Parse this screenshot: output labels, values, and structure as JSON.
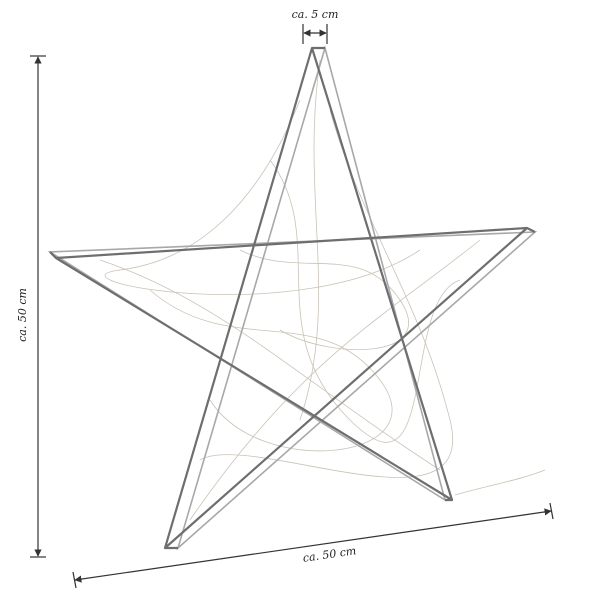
{
  "dimensions": {
    "depth": "ca. 5 cm",
    "height": "ca. 50 cm",
    "width": "ca. 50 cm"
  }
}
